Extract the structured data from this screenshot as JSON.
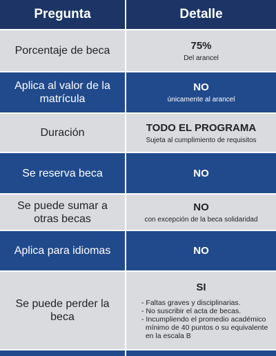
{
  "header": {
    "columns": [
      "Pregunta",
      "Detalle"
    ]
  },
  "rows": [
    {
      "question": "Porcentaje de beca",
      "answer": "75%",
      "note": "Del arancel"
    },
    {
      "question": "Aplica al valor de la matrícula",
      "answer": "NO",
      "note": "únicamente al arancel"
    },
    {
      "question": "Duración",
      "answer": "TODO EL PROGRAMA",
      "note": "Sujeta al cumplimiento de requisitos"
    },
    {
      "question": "Se reserva beca",
      "answer": "NO"
    },
    {
      "question": "Se puede sumar a otras becas",
      "answer": "NO",
      "note": "con excepción de la beca solidaridad"
    },
    {
      "question": "Aplica para idiomas",
      "answer": "NO"
    },
    {
      "question": "Se puede perder la beca",
      "answer": "SI",
      "items": [
        "- Faltas graves y disciplinarias.",
        "- No suscribir el acta de becas.",
        "- Incumpliendo el promedio académico",
        "  mínimo de 40 puntos o su equivalente",
        "  en la escala B"
      ]
    }
  ]
}
